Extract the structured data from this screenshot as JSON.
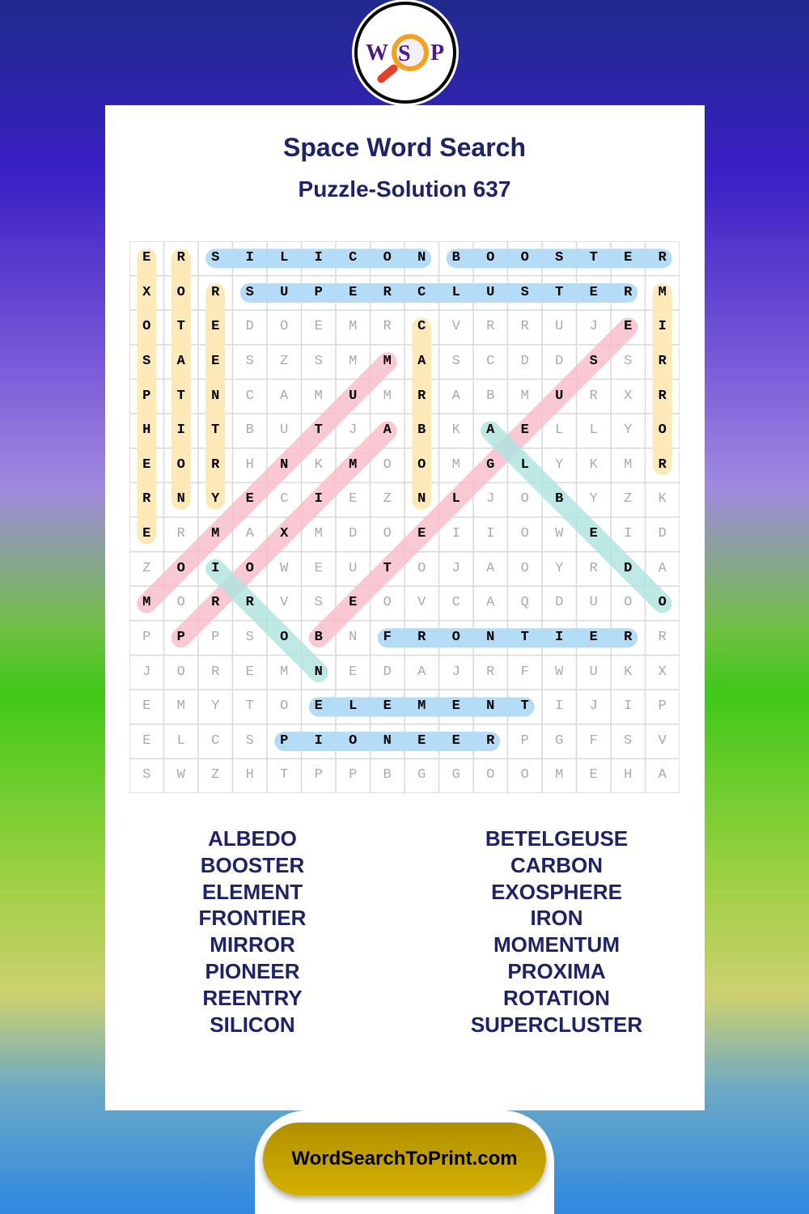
{
  "logo": {
    "letters": [
      "W",
      "S",
      "P"
    ]
  },
  "title": "Space Word Search",
  "subtitle": "Puzzle-Solution 637",
  "grid": [
    "ERSILICONBOOSTER",
    "XORSUPERCLUSTERM",
    "OTEDOEMRCVRRUJEI",
    "SAESZSMMASCDDSSR",
    "PTNCAMUMRABMURXR",
    "HITBUTJABKAELLYO",
    "EORHNKMOOMGLYKMR",
    "RNYECIEZNLJOBYZK",
    "ERMAXMDOEIIOWEID",
    "ZOIOWEUTOJAOYRDA",
    "MORRVSEOVCAQDUOO",
    "PPPSOBNFRONTIERR",
    "JOREMNEDAJRFWUKX",
    "EMYTOELEMENTIJIP",
    "ELCSPIONEERPGFSV",
    "SWZHTPPBGGOOMEHA"
  ],
  "highlight_colors": {
    "across": "#b5dcf6",
    "down": "#fde8b8",
    "diag_up": "#f9bfcc",
    "diag_down": "#b2e4e0"
  },
  "solutions": [
    {
      "word": "SILICON",
      "start": [
        0,
        2
      ],
      "end": [
        0,
        8
      ],
      "dir": "across"
    },
    {
      "word": "BOOSTER",
      "start": [
        0,
        9
      ],
      "end": [
        0,
        15
      ],
      "dir": "across"
    },
    {
      "word": "SUPERCLUSTER",
      "start": [
        1,
        3
      ],
      "end": [
        1,
        14
      ],
      "dir": "across"
    },
    {
      "word": "FRONTIER",
      "start": [
        11,
        7
      ],
      "end": [
        11,
        14
      ],
      "dir": "across"
    },
    {
      "word": "ELEMENT",
      "start": [
        13,
        5
      ],
      "end": [
        13,
        11
      ],
      "dir": "across"
    },
    {
      "word": "PIONEER",
      "start": [
        14,
        4
      ],
      "end": [
        14,
        10
      ],
      "dir": "across"
    },
    {
      "word": "EXOSPHERE",
      "start": [
        0,
        0
      ],
      "end": [
        8,
        0
      ],
      "dir": "down"
    },
    {
      "word": "ROTATION",
      "start": [
        0,
        1
      ],
      "end": [
        7,
        1
      ],
      "dir": "down"
    },
    {
      "word": "REENTRY",
      "start": [
        1,
        2
      ],
      "end": [
        7,
        2
      ],
      "dir": "down"
    },
    {
      "word": "CARBON",
      "start": [
        2,
        8
      ],
      "end": [
        7,
        8
      ],
      "dir": "down"
    },
    {
      "word": "MIRROR",
      "start": [
        1,
        15
      ],
      "end": [
        6,
        15
      ],
      "dir": "down"
    },
    {
      "word": "MOMENTUM",
      "start": [
        10,
        0
      ],
      "end": [
        3,
        7
      ],
      "dir": "diag_up"
    },
    {
      "word": "PROXIMA",
      "start": [
        11,
        1
      ],
      "end": [
        5,
        7
      ],
      "dir": "diag_up"
    },
    {
      "word": "BETELGEUSE",
      "start": [
        11,
        5
      ],
      "end": [
        2,
        14
      ],
      "dir": "diag_up"
    },
    {
      "word": "ALBEDO",
      "start": [
        5,
        10
      ],
      "end": [
        10,
        15
      ],
      "dir": "diag_down"
    },
    {
      "word": "IRON",
      "start": [
        9,
        2
      ],
      "end": [
        12,
        5
      ],
      "dir": "diag_down"
    }
  ],
  "word_list": {
    "left": [
      "ALBEDO",
      "BOOSTER",
      "ELEMENT",
      "FRONTIER",
      "MIRROR",
      "PIONEER",
      "REENTRY",
      "SILICON"
    ],
    "right": [
      "BETELGEUSE",
      "CARBON",
      "EXOSPHERE",
      "IRON",
      "MOMENTUM",
      "PROXIMA",
      "ROTATION",
      "SUPERCLUSTER"
    ]
  },
  "footer": {
    "site": "WordSearchToPrint.com"
  }
}
